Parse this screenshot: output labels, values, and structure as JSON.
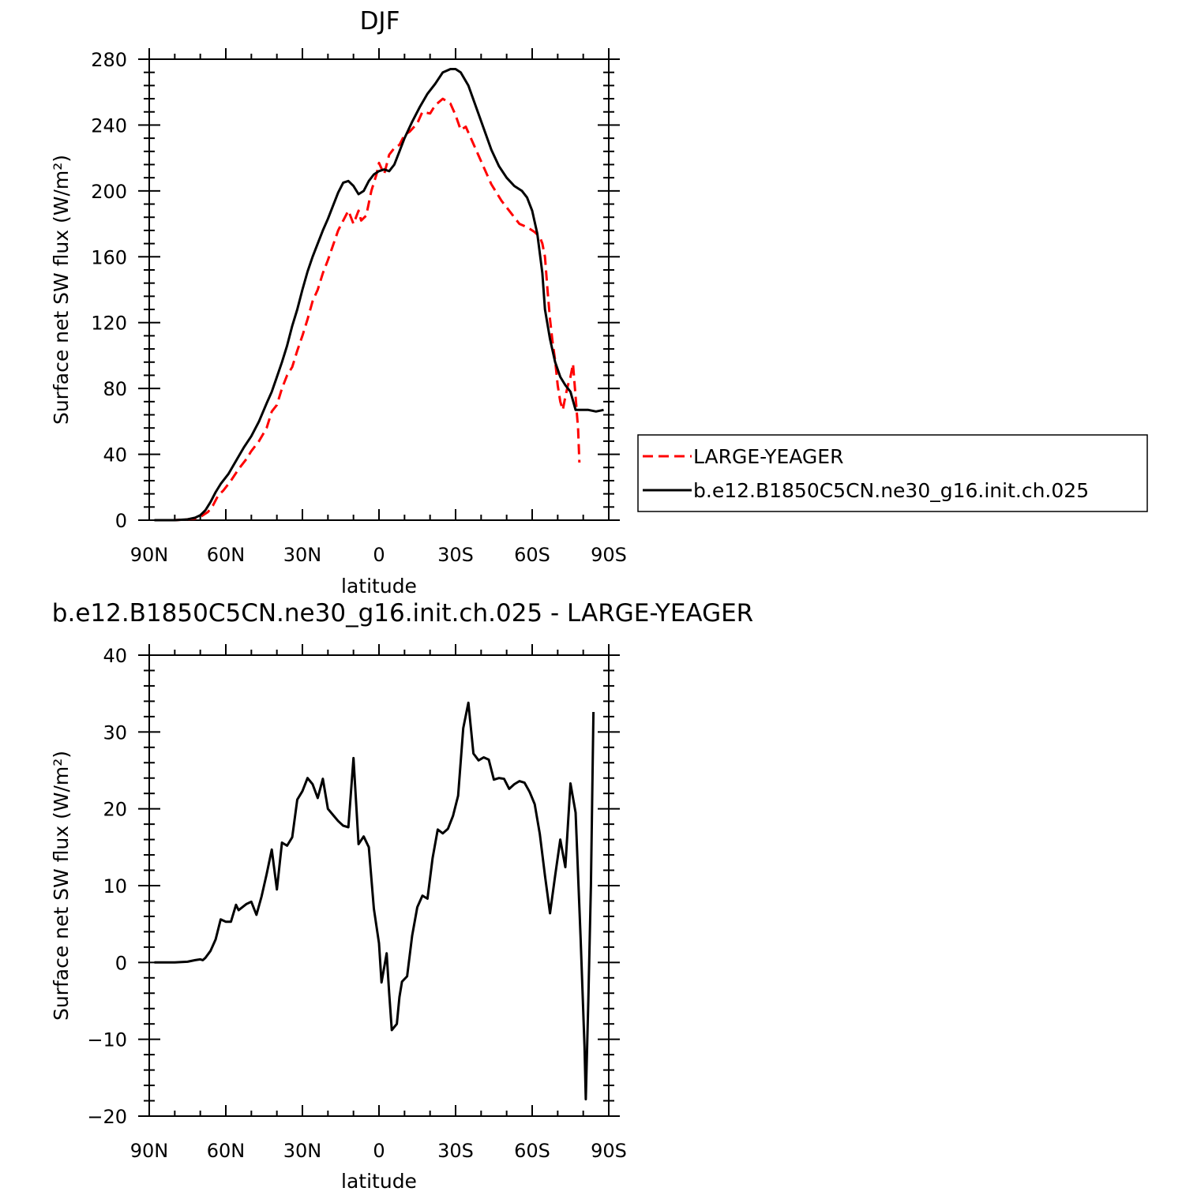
{
  "chart_data": [
    {
      "type": "line",
      "title": "DJF",
      "xlabel": "latitude",
      "ylabel": "Surface net SW flux (W/m²)",
      "xlim": [
        90,
        -90
      ],
      "ylim": [
        0,
        280
      ],
      "x_tick_values": [
        90,
        60,
        30,
        0,
        -30,
        -60,
        -90
      ],
      "x_tick_labels": [
        "90N",
        "60N",
        "30N",
        "0",
        "30S",
        "60S",
        "90S"
      ],
      "y_tick_values": [
        0,
        40,
        80,
        120,
        160,
        200,
        240,
        280
      ],
      "y_tick_labels": [
        "0",
        "40",
        "80",
        "120",
        "160",
        "200",
        "240",
        "280"
      ],
      "grid": false,
      "legend_position": "right",
      "series": [
        {
          "name": "LARGE-YEAGER",
          "color": "#ff0000",
          "style": "dashed",
          "points": [
            [
              88,
              0
            ],
            [
              80,
              0
            ],
            [
              75,
              0.5
            ],
            [
              72,
              1
            ],
            [
              70,
              2
            ],
            [
              67,
              5
            ],
            [
              65,
              9
            ],
            [
              63,
              15
            ],
            [
              61,
              18
            ],
            [
              58,
              24
            ],
            [
              55,
              31
            ],
            [
              52,
              37
            ],
            [
              50,
              42
            ],
            [
              47,
              48
            ],
            [
              44,
              56
            ],
            [
              42,
              66
            ],
            [
              40,
              70
            ],
            [
              38,
              80
            ],
            [
              36,
              88
            ],
            [
              34,
              93
            ],
            [
              32,
              103
            ],
            [
              30,
              112
            ],
            [
              28,
              122
            ],
            [
              26,
              133
            ],
            [
              24,
              140
            ],
            [
              22,
              150
            ],
            [
              20,
              158
            ],
            [
              18,
              167
            ],
            [
              16,
              176
            ],
            [
              14,
              182
            ],
            [
              12,
              188
            ],
            [
              10,
              180
            ],
            [
              8,
              188
            ],
            [
              7,
              182
            ],
            [
              5,
              185
            ],
            [
              3,
              200
            ],
            [
              1,
              210
            ],
            [
              0,
              217
            ],
            [
              -2,
              210
            ],
            [
              -4,
              222
            ],
            [
              -6,
              226
            ],
            [
              -8,
              228
            ],
            [
              -10,
              234
            ],
            [
              -12,
              236
            ],
            [
              -15,
              241
            ],
            [
              -17,
              248
            ],
            [
              -20,
              247
            ],
            [
              -22,
              252
            ],
            [
              -25,
              256
            ],
            [
              -28,
              253
            ],
            [
              -30,
              246
            ],
            [
              -32,
              237
            ],
            [
              -34,
              239
            ],
            [
              -36,
              232
            ],
            [
              -40,
              218
            ],
            [
              -44,
              204
            ],
            [
              -48,
              194
            ],
            [
              -52,
              186
            ],
            [
              -55,
              180
            ],
            [
              -58,
              178
            ],
            [
              -61,
              175
            ],
            [
              -63,
              172
            ],
            [
              -64,
              168
            ],
            [
              -65,
              160
            ],
            [
              -66,
              140
            ],
            [
              -67,
              122
            ],
            [
              -68,
              108
            ],
            [
              -69,
              97
            ],
            [
              -70,
              82
            ],
            [
              -71,
              72
            ],
            [
              -72,
              67
            ],
            [
              -73,
              75
            ],
            [
              -74,
              82
            ],
            [
              -75,
              87
            ],
            [
              -76,
              95
            ],
            [
              -77,
              75
            ],
            [
              -78,
              55
            ],
            [
              -78.5,
              35
            ]
          ]
        },
        {
          "name": "b.e12.B1850C5CN.ne30_g16.init.ch.025",
          "color": "#000000",
          "style": "solid",
          "points": [
            [
              88,
              0
            ],
            [
              80,
              0
            ],
            [
              75,
              0.5
            ],
            [
              72,
              1.5
            ],
            [
              70,
              3
            ],
            [
              68,
              6
            ],
            [
              66,
              11
            ],
            [
              64,
              17
            ],
            [
              62,
              22
            ],
            [
              59,
              28
            ],
            [
              56,
              36
            ],
            [
              53,
              44
            ],
            [
              50,
              51
            ],
            [
              47,
              60
            ],
            [
              44,
              71
            ],
            [
              42,
              78
            ],
            [
              40,
              87
            ],
            [
              38,
              96
            ],
            [
              36,
              106
            ],
            [
              34,
              118
            ],
            [
              32,
              128
            ],
            [
              30,
              140
            ],
            [
              28,
              151
            ],
            [
              26,
              160
            ],
            [
              24,
              168
            ],
            [
              22,
              176
            ],
            [
              20,
              183
            ],
            [
              18,
              191
            ],
            [
              16,
              199
            ],
            [
              14,
              205
            ],
            [
              12,
              206
            ],
            [
              10,
              203
            ],
            [
              8,
              198
            ],
            [
              6,
              200
            ],
            [
              4,
              206
            ],
            [
              2,
              210
            ],
            [
              0,
              212
            ],
            [
              -2,
              213
            ],
            [
              -4,
              212
            ],
            [
              -6,
              216
            ],
            [
              -8,
              224
            ],
            [
              -10,
              232
            ],
            [
              -13,
              242
            ],
            [
              -16,
              251
            ],
            [
              -19,
              259
            ],
            [
              -22,
              265
            ],
            [
              -25,
              272
            ],
            [
              -28,
              274
            ],
            [
              -30,
              274
            ],
            [
              -32,
              272
            ],
            [
              -35,
              264
            ],
            [
              -38,
              251
            ],
            [
              -41,
              238
            ],
            [
              -44,
              225
            ],
            [
              -47,
              215
            ],
            [
              -50,
              208
            ],
            [
              -53,
              203
            ],
            [
              -56,
              200
            ],
            [
              -58,
              196
            ],
            [
              -60,
              188
            ],
            [
              -62,
              174
            ],
            [
              -64,
              150
            ],
            [
              -65,
              128
            ],
            [
              -67,
              110
            ],
            [
              -69,
              96
            ],
            [
              -71,
              87
            ],
            [
              -73,
              82
            ],
            [
              -75,
              78
            ],
            [
              -77,
              67
            ],
            [
              -79,
              67
            ],
            [
              -82,
              67
            ],
            [
              -85,
              66
            ],
            [
              -88,
              67
            ]
          ]
        }
      ]
    },
    {
      "type": "line",
      "title": "b.e12.B1850C5CN.ne30_g16.init.ch.025 - LARGE-YEAGER",
      "xlabel": "latitude",
      "ylabel": "Surface net SW flux (W/m²)",
      "xlim": [
        90,
        -90
      ],
      "ylim": [
        -20,
        40
      ],
      "x_tick_values": [
        90,
        60,
        30,
        0,
        -30,
        -60,
        -90
      ],
      "x_tick_labels": [
        "90N",
        "60N",
        "30N",
        "0",
        "30S",
        "60S",
        "90S"
      ],
      "y_tick_values": [
        -20,
        -10,
        0,
        10,
        20,
        30,
        40
      ],
      "y_tick_labels": [
        "−20",
        "−10",
        "0",
        "10",
        "20",
        "30",
        "40"
      ],
      "grid": false,
      "series": [
        {
          "color": "#000000",
          "style": "solid",
          "points": [
            [
              88,
              0
            ],
            [
              80,
              0
            ],
            [
              75,
              0.1
            ],
            [
              72,
              0.3
            ],
            [
              70,
              0.4
            ],
            [
              69,
              0.3
            ],
            [
              68,
              0.6
            ],
            [
              66,
              1.5
            ],
            [
              64,
              3
            ],
            [
              62,
              5.6
            ],
            [
              60,
              5.3
            ],
            [
              58,
              5.3
            ],
            [
              56,
              7.5
            ],
            [
              55,
              6.8
            ],
            [
              52,
              7.6
            ],
            [
              50,
              7.9
            ],
            [
              48,
              6.2
            ],
            [
              46,
              8.6
            ],
            [
              44,
              11.5
            ],
            [
              42,
              14.7
            ],
            [
              40,
              9.5
            ],
            [
              38,
              15.6
            ],
            [
              36,
              15.2
            ],
            [
              34,
              16.3
            ],
            [
              32,
              21.2
            ],
            [
              30,
              22.3
            ],
            [
              28,
              24
            ],
            [
              26,
              23.2
            ],
            [
              24,
              21.4
            ],
            [
              22,
              23.9
            ],
            [
              20,
              20
            ],
            [
              18,
              19.2
            ],
            [
              16,
              18.4
            ],
            [
              14,
              17.8
            ],
            [
              12,
              17.6
            ],
            [
              10,
              26.6
            ],
            [
              8,
              15.4
            ],
            [
              6,
              16.4
            ],
            [
              4,
              15
            ],
            [
              2,
              7
            ],
            [
              0,
              2.5
            ],
            [
              -1,
              -2.6
            ],
            [
              -3,
              1.2
            ],
            [
              -4,
              -4
            ],
            [
              -5,
              -8.8
            ],
            [
              -7,
              -8
            ],
            [
              -8,
              -4.5
            ],
            [
              -9,
              -2.5
            ],
            [
              -11,
              -1.8
            ],
            [
              -13,
              3.5
            ],
            [
              -15,
              7.2
            ],
            [
              -17,
              8.7
            ],
            [
              -19,
              8.3
            ],
            [
              -21,
              13.6
            ],
            [
              -23,
              17.3
            ],
            [
              -25,
              16.8
            ],
            [
              -27,
              17.4
            ],
            [
              -29,
              19.1
            ],
            [
              -31,
              21.7
            ],
            [
              -33,
              30.5
            ],
            [
              -35,
              33.8
            ],
            [
              -37,
              27.2
            ],
            [
              -39,
              26.3
            ],
            [
              -41,
              26.7
            ],
            [
              -43,
              26.4
            ],
            [
              -45,
              23.8
            ],
            [
              -47,
              24
            ],
            [
              -49,
              23.9
            ],
            [
              -51,
              22.6
            ],
            [
              -53,
              23.2
            ],
            [
              -55,
              23.6
            ],
            [
              -57,
              23.4
            ],
            [
              -59,
              22.2
            ],
            [
              -61,
              20.6
            ],
            [
              -63,
              16.7
            ],
            [
              -65,
              11.3
            ],
            [
              -67,
              6.4
            ],
            [
              -69,
              11.3
            ],
            [
              -71,
              16
            ],
            [
              -73,
              12.4
            ],
            [
              -75,
              23.3
            ],
            [
              -77,
              19.5
            ],
            [
              -79,
              3
            ],
            [
              -80.5,
              -11
            ],
            [
              -81,
              -17.8
            ],
            [
              -82,
              -5
            ],
            [
              -83,
              10
            ],
            [
              -84,
              32.6
            ]
          ]
        }
      ]
    }
  ]
}
